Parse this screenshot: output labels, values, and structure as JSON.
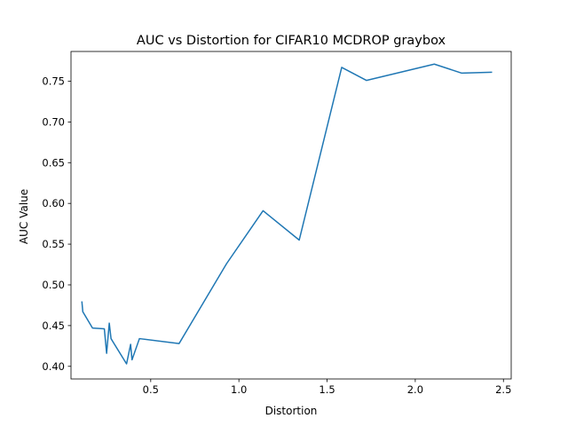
{
  "chart_data": {
    "type": "line",
    "title": "AUC vs Distortion for CIFAR10 MCDROP graybox",
    "xlabel": "Distortion",
    "ylabel": "AUC Value",
    "xlim": [
      0.048,
      2.544
    ],
    "ylim": [
      0.3845,
      0.7865
    ],
    "xticks": [
      0.5,
      1.0,
      1.5,
      2.0,
      2.5
    ],
    "xtick_labels": [
      "0.5",
      "1.0",
      "1.5",
      "2.0",
      "2.5"
    ],
    "yticks": [
      0.4,
      0.45,
      0.5,
      0.55,
      0.6,
      0.65,
      0.7,
      0.75
    ],
    "ytick_labels": [
      "0.40",
      "0.45",
      "0.50",
      "0.55",
      "0.60",
      "0.65",
      "0.70",
      "0.75"
    ],
    "grid": false,
    "legend": "none",
    "series": [
      {
        "color": "#1f77b4",
        "x": [
          0.11,
          0.115,
          0.17,
          0.237,
          0.25,
          0.265,
          0.275,
          0.363,
          0.386,
          0.394,
          0.436,
          0.661,
          0.93,
          1.137,
          1.342,
          1.583,
          1.723,
          2.108,
          2.262,
          2.432
        ],
        "y": [
          0.479,
          0.467,
          0.447,
          0.446,
          0.416,
          0.453,
          0.434,
          0.403,
          0.427,
          0.408,
          0.434,
          0.428,
          0.526,
          0.591,
          0.555,
          0.767,
          0.751,
          0.771,
          0.76,
          0.761
        ]
      }
    ]
  }
}
